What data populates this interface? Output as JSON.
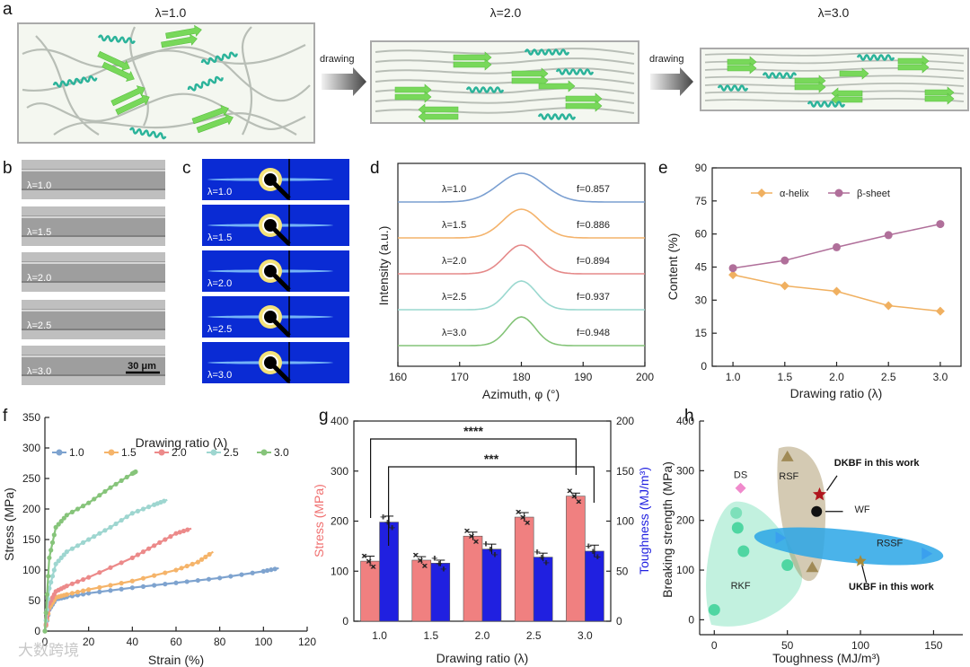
{
  "panel_labels": [
    "a",
    "b",
    "c",
    "d",
    "e",
    "f",
    "g",
    "h"
  ],
  "panel_a": {
    "states": [
      "λ=1.0",
      "λ=2.0",
      "λ=3.0"
    ],
    "arrow_labels": [
      "drawing",
      "drawing"
    ],
    "colors": {
      "helix": "#2bb39a",
      "sheet": "#78d85a",
      "chain": "#b8beb6",
      "box_fill": "#f4f7f0"
    }
  },
  "panel_b": {
    "labels": [
      "λ=1.0",
      "λ=1.5",
      "λ=2.0",
      "λ=2.5",
      "λ=3.0"
    ],
    "scale_bar": "30 μm"
  },
  "panel_c": {
    "labels": [
      "λ=1.0",
      "λ=1.5",
      "λ=2.0",
      "λ=2.5",
      "λ=3.0"
    ],
    "colors": {
      "bg": "#0a2bd4"
    }
  },
  "watermark": "大数跨境",
  "chart_data": [
    {
      "id": "d",
      "type": "line",
      "xlabel": "Azimuth, φ (°)",
      "ylabel": "Intensity (a.u.)",
      "xlim": [
        160,
        200
      ],
      "xticks": [
        160,
        170,
        180,
        190,
        200
      ],
      "series": [
        {
          "name": "λ=1.0",
          "f": "f=0.857",
          "color": "#7a9fd1",
          "width": 5.2
        },
        {
          "name": "λ=1.5",
          "f": "f=0.886",
          "color": "#f4b36c",
          "width": 4.2
        },
        {
          "name": "λ=2.0",
          "f": "f=0.894",
          "color": "#e58a8a",
          "width": 3.8
        },
        {
          "name": "λ=2.5",
          "f": "f=0.937",
          "color": "#9ad8cf",
          "width": 3.4
        },
        {
          "name": "λ=3.0",
          "f": "f=0.948",
          "color": "#84c478",
          "width": 3.2
        }
      ]
    },
    {
      "id": "e",
      "type": "line",
      "xlabel": "Drawing ratio (λ)",
      "ylabel": "Content (%)",
      "xlim": [
        0.8,
        3.2
      ],
      "ylim": [
        0,
        90
      ],
      "xticks": [
        "1.0",
        "1.5",
        "2.0",
        "2.5",
        "3.0"
      ],
      "yticks": [
        0,
        15,
        30,
        45,
        60,
        75,
        90
      ],
      "x": [
        1.0,
        1.5,
        2.0,
        2.5,
        3.0
      ],
      "series": [
        {
          "name": "α-helix",
          "values": [
            41.5,
            36.5,
            34,
            27.5,
            25
          ],
          "color": "#f0b060",
          "marker": "diamond"
        },
        {
          "name": "β-sheet",
          "values": [
            44.5,
            48,
            54,
            59.5,
            64.5
          ],
          "color": "#b06f9a",
          "marker": "circle"
        }
      ]
    },
    {
      "id": "f",
      "type": "line",
      "xlabel": "Strain (%)",
      "ylabel": "Stress (MPa)",
      "legend_title": "Drawing ratio (λ)",
      "xlim": [
        0,
        120
      ],
      "ylim": [
        0,
        350
      ],
      "xticks": [
        0,
        20,
        40,
        60,
        80,
        100,
        120
      ],
      "yticks": [
        0,
        50,
        100,
        150,
        200,
        250,
        300,
        350
      ],
      "series": [
        {
          "name": "1.0",
          "color": "#7ea3cf",
          "points": [
            [
              0,
              0
            ],
            [
              2,
              35
            ],
            [
              5,
              52
            ],
            [
              10,
              56
            ],
            [
              20,
              62
            ],
            [
              40,
              71
            ],
            [
              60,
              79
            ],
            [
              80,
              87
            ],
            [
              100,
              98
            ],
            [
              107,
              103
            ]
          ]
        },
        {
          "name": "1.5",
          "color": "#f5b46a",
          "points": [
            [
              0,
              0
            ],
            [
              2,
              38
            ],
            [
              5,
              55
            ],
            [
              10,
              60
            ],
            [
              20,
              68
            ],
            [
              40,
              82
            ],
            [
              60,
              100
            ],
            [
              70,
              113
            ],
            [
              77,
              130
            ]
          ]
        },
        {
          "name": "2.0",
          "color": "#ec8a8a",
          "points": [
            [
              0,
              0
            ],
            [
              2,
              45
            ],
            [
              5,
              65
            ],
            [
              10,
              74
            ],
            [
              20,
              88
            ],
            [
              40,
              120
            ],
            [
              50,
              140
            ],
            [
              60,
              160
            ],
            [
              67,
              168
            ]
          ]
        },
        {
          "name": "2.5",
          "color": "#9ed6d0",
          "points": [
            [
              0,
              0
            ],
            [
              2,
              70
            ],
            [
              5,
              110
            ],
            [
              10,
              130
            ],
            [
              20,
              150
            ],
            [
              30,
              170
            ],
            [
              40,
              193
            ],
            [
              50,
              207
            ],
            [
              56,
              215
            ]
          ]
        },
        {
          "name": "3.0",
          "color": "#86c47a",
          "points": [
            [
              0,
              0
            ],
            [
              2,
              120
            ],
            [
              5,
              170
            ],
            [
              10,
              190
            ],
            [
              20,
              210
            ],
            [
              30,
              235
            ],
            [
              40,
              258
            ],
            [
              42,
              262
            ]
          ]
        }
      ]
    },
    {
      "id": "g",
      "type": "bar",
      "xlabel": "Drawing ratio (λ)",
      "ylabel_left": "Stress (MPa)",
      "ylabel_right": "Toughness (MJ/m³)",
      "categories": [
        "1.0",
        "1.5",
        "2.0",
        "2.5",
        "3.0"
      ],
      "ylim_left": [
        0,
        400
      ],
      "ylim_right": [
        0,
        200
      ],
      "yticks_left": [
        0,
        100,
        200,
        300,
        400
      ],
      "yticks_right": [
        0,
        50,
        100,
        150,
        200
      ],
      "series": [
        {
          "name": "Stress",
          "axis": "left",
          "values": [
            120,
            122,
            170,
            208,
            250
          ],
          "errors": [
            10,
            7,
            8,
            9,
            6
          ],
          "color": "#f08080"
        },
        {
          "name": "Toughness",
          "axis": "right",
          "values": [
            99,
            58,
            72,
            64,
            70
          ],
          "errors": [
            6,
            3,
            5,
            4,
            6
          ],
          "color": "#2020e0"
        }
      ],
      "significance": [
        {
          "label": "****",
          "from": "1.0",
          "to": "3.0"
        },
        {
          "label": "***",
          "from": "1.0",
          "to": "3.0"
        }
      ]
    },
    {
      "id": "h",
      "type": "scatter",
      "xlabel": "Toughness (MJ/m³)",
      "ylabel": "Breaking strength (MPa)",
      "xlim": [
        -10,
        170
      ],
      "ylim": [
        -30,
        400
      ],
      "xticks": [
        0,
        50,
        100,
        150
      ],
      "yticks": [
        0,
        100,
        200,
        300,
        400
      ],
      "groups": [
        {
          "name": "RKF",
          "color": "#4fd6a2",
          "points": [
            [
              0,
              20
            ],
            [
              15,
              215
            ],
            [
              16,
              185
            ],
            [
              20,
              138
            ],
            [
              50,
              110
            ]
          ]
        },
        {
          "name": "DS",
          "color": "#f08acc",
          "points": [
            [
              18,
              265
            ]
          ]
        },
        {
          "name": "RSF",
          "color": "#a08a56",
          "points": [
            [
              50,
              328
            ],
            [
              67,
              105
            ]
          ]
        },
        {
          "name": "WF",
          "color": "#111111",
          "points": [
            [
              70,
              218
            ]
          ]
        },
        {
          "name": "RSSF",
          "color": "#2aa6e6",
          "points": [
            [
              45,
              165
            ],
            [
              145,
              133
            ]
          ]
        },
        {
          "name": "DKBF in this work",
          "color": "#b0151d",
          "points": [
            [
              72,
              252
            ]
          ]
        },
        {
          "name": "UKBF in this work",
          "color": "#a58a3a",
          "points": [
            [
              100,
              118
            ]
          ]
        }
      ]
    }
  ]
}
